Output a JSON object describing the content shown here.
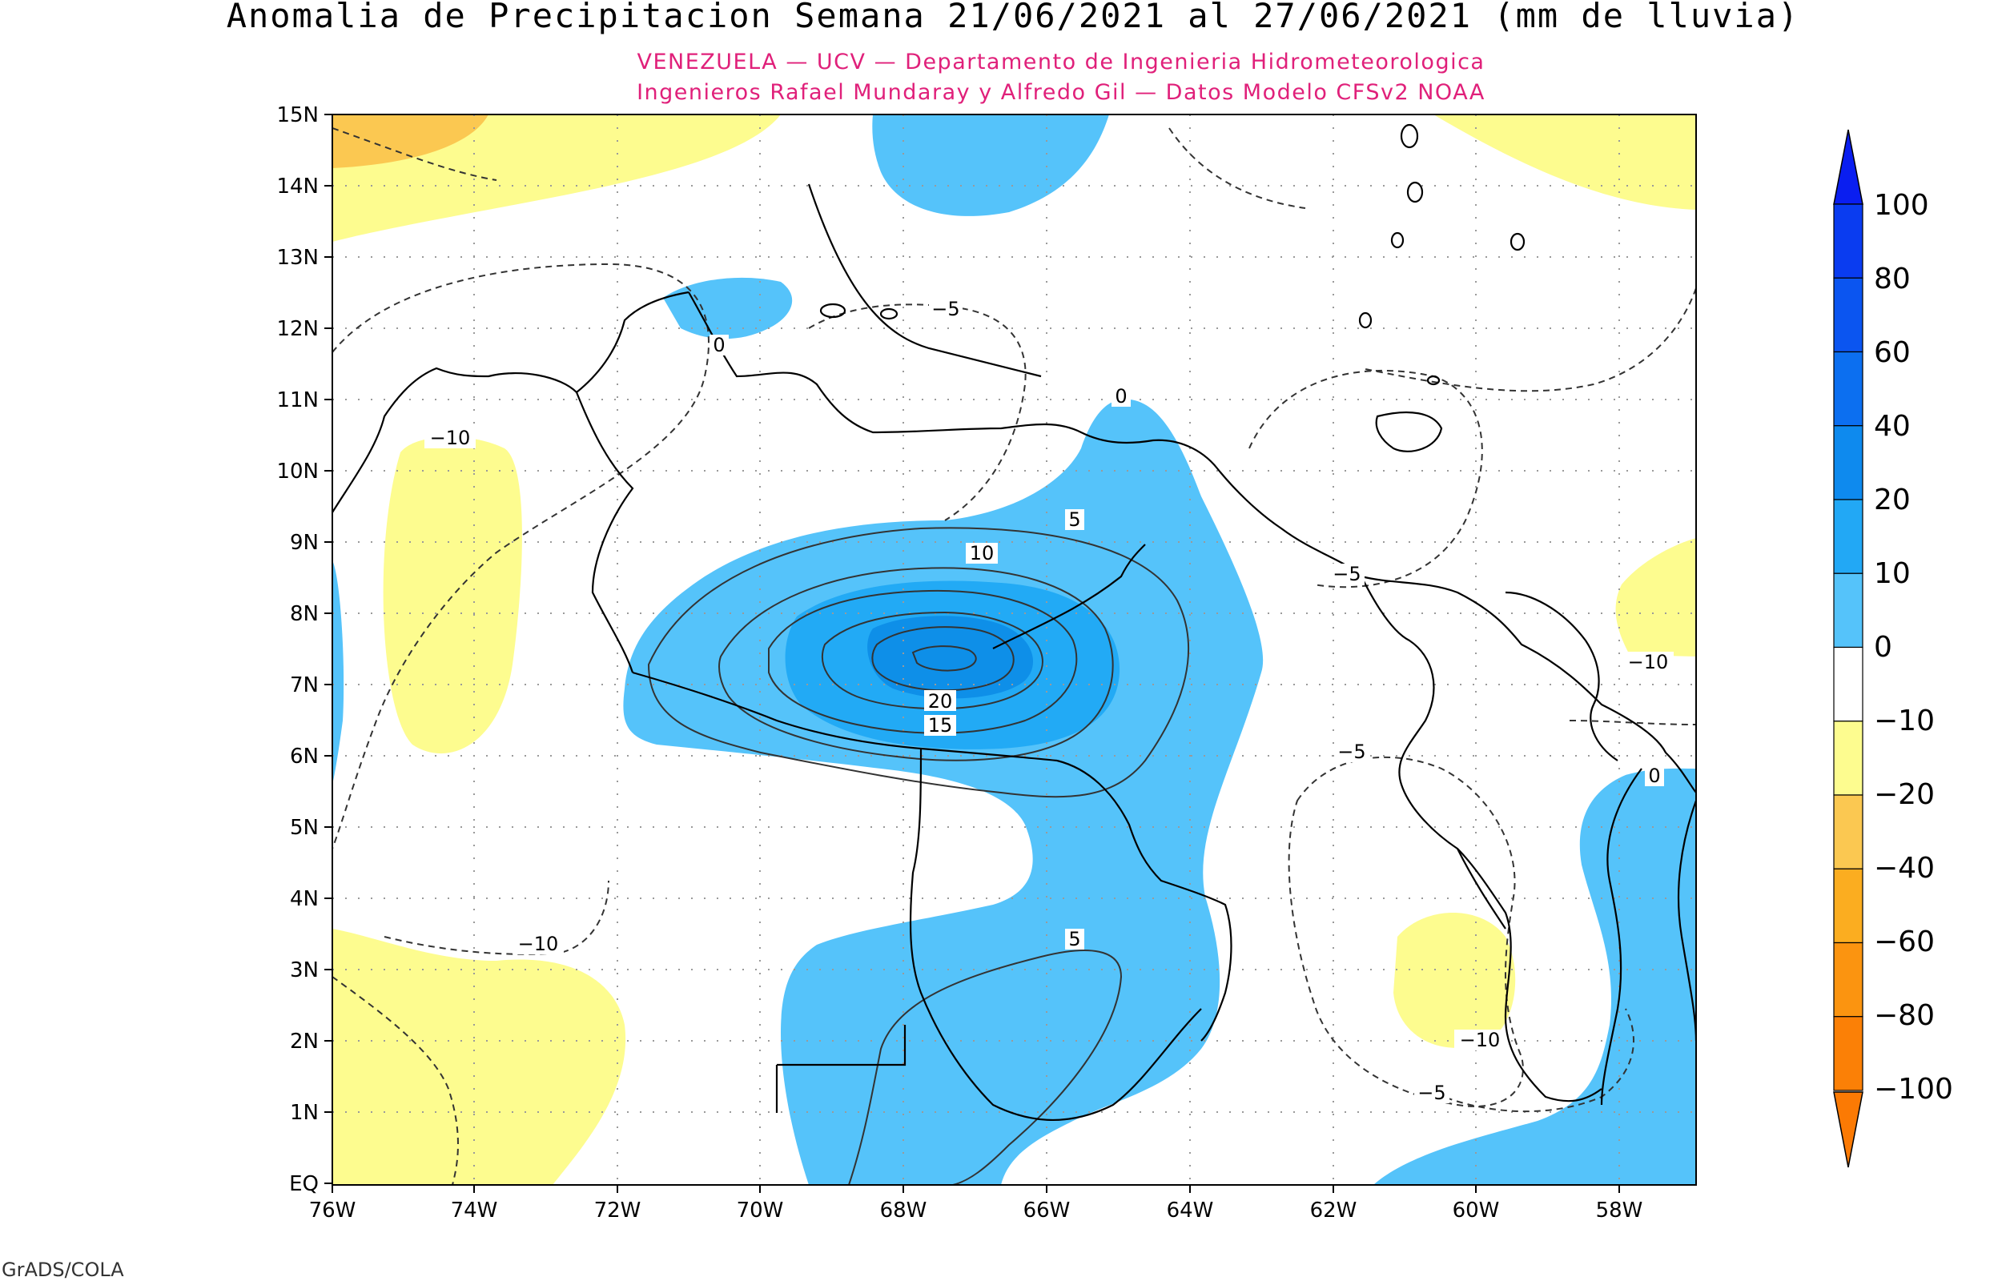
{
  "title": "Anomalia de Precipitacion Semana 21/06/2021 al 27/06/2021 (mm de lluvia)",
  "subtitle_line1": "VENEZUELA — UCV — Departamento de Ingenieria Hidrometeorologica",
  "subtitle_line2": "Ingenieros Rafael Mundaray y Alfredo Gil — Datos Modelo CFSv2 NOAA",
  "footer": "GrADS/COLA",
  "colors": {
    "subtitle": "#e0207a",
    "pos_light": "#55c3fa",
    "pos_mid": "#22aaf5",
    "pos_strong": "#0e8fe8",
    "neg_light": "#fdfc8f",
    "neg_mid": "#fbc851",
    "frame": "#000000"
  },
  "lat_labels": [
    "15N",
    "14N",
    "13N",
    "12N",
    "11N",
    "10N",
    "9N",
    "8N",
    "7N",
    "6N",
    "5N",
    "4N",
    "3N",
    "2N",
    "1N",
    "EQ"
  ],
  "lon_labels": [
    "76W",
    "74W",
    "72W",
    "70W",
    "68W",
    "66W",
    "64W",
    "62W",
    "60W",
    "58W"
  ],
  "colorbar": {
    "labels": [
      "100",
      "80",
      "60",
      "40",
      "20",
      "10",
      "0",
      "−10",
      "−20",
      "−40",
      "−60",
      "−80",
      "−100"
    ],
    "colors": [
      "#0a3cf0",
      "#0b55f0",
      "#0c6ff0",
      "#0e8aee",
      "#22a8f5",
      "#55c3fa",
      "#ffffff",
      "#fdfc8f",
      "#fbc851",
      "#fbad20",
      "#fb9410",
      "#fb8006"
    ]
  },
  "contour_labels": {
    "c_m5_top": "−5",
    "c_0_nw": "0",
    "c_0_n": "0",
    "c_m10_w": "−10",
    "c_5_a": "5",
    "c_10": "10",
    "c_20": "20",
    "c_15": "15",
    "c_m5_e": "−5",
    "c_m10_e": "−10",
    "c_0_se": "0",
    "c_m5_se": "−5",
    "c_5_s": "5",
    "c_m10_sw": "−10",
    "c_m10_se2": "−10",
    "c_m5_s2": "−5"
  }
}
